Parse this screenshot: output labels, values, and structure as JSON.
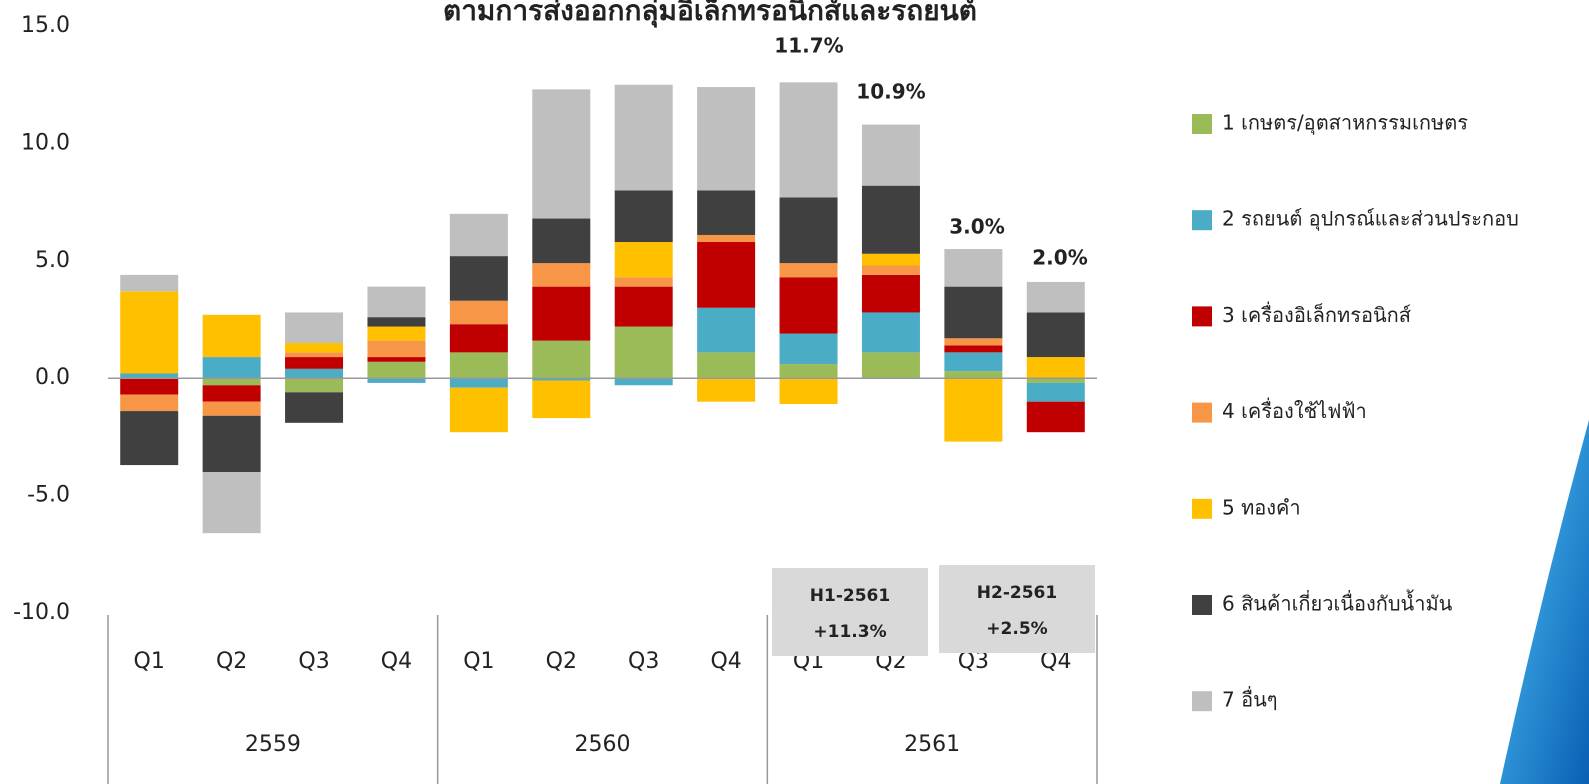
{
  "chart_data": {
    "type": "stacked_bar",
    "title": "ตามการส่งออกกลุ่มอิเล็กทรอนิกส์และรถยนต์",
    "categories": [
      "Q1",
      "Q2",
      "Q3",
      "Q4",
      "Q1",
      "Q2",
      "Q3",
      "Q4",
      "Q1",
      "Q2",
      "Q3",
      "Q4"
    ],
    "groups": [
      "2559",
      "2560",
      "2561"
    ],
    "series": [
      {
        "name": "1 เกษตร/อุตสาหกรรมเกษตร",
        "color": "#9BBB59",
        "values": [
          0,
          -0.3,
          -0.6,
          0.7,
          1.1,
          1.6,
          2.2,
          1.1,
          0.6,
          1.1,
          0.3,
          -0.2
        ]
      },
      {
        "name": "2 รถยนต์ อุปกรณ์และส่วนประกอบ",
        "color": "#4BACC6",
        "values": [
          0.2,
          0.9,
          0.4,
          -0.2,
          -0.4,
          -0.1,
          -0.3,
          1.9,
          1.3,
          1.7,
          0.8,
          -0.8
        ]
      },
      {
        "name": "3 เครื่องอิเล็กทรอนิกส์",
        "color": "#C00000",
        "values": [
          -0.7,
          -0.7,
          0.5,
          0.2,
          1.2,
          2.3,
          1.7,
          2.8,
          2.4,
          1.6,
          0.3,
          -1.3
        ]
      },
      {
        "name": "4 เครื่องใช้ไฟฟ้า",
        "color": "#F79646",
        "values": [
          -0.7,
          -0.6,
          0.2,
          0.7,
          1.0,
          1.0,
          0.4,
          0.3,
          0.6,
          0.4,
          0.3,
          0
        ]
      },
      {
        "name": "5 ทองคำ",
        "color": "#FFC000",
        "values": [
          3.5,
          1.8,
          0.4,
          0.6,
          -1.9,
          -1.6,
          1.5,
          -1.0,
          -1.1,
          0.5,
          -2.7,
          0.9
        ]
      },
      {
        "name": "6 สินค้าเกี่ยวเนื่องกับน้ำมัน",
        "color": "#404040",
        "values": [
          -2.3,
          -2.4,
          -1.3,
          0.4,
          1.9,
          1.9,
          2.2,
          1.9,
          2.8,
          2.9,
          2.2,
          1.9
        ]
      },
      {
        "name": "7 อื่นๆ",
        "color": "#BFBFBF",
        "values": [
          0.7,
          -2.6,
          1.3,
          1.3,
          1.8,
          5.5,
          4.5,
          4.4,
          4.9,
          2.6,
          1.6,
          1.3
        ]
      }
    ],
    "annotations": [
      "11.7%",
      "10.9%",
      "3.0%",
      "2.0%"
    ],
    "period_boxes": [
      {
        "label": "H1-2561",
        "value_label": "+11.3%"
      },
      {
        "label": "H2-2561",
        "value_label": "+2.5%"
      }
    ],
    "ylim": [
      -10,
      15
    ],
    "yticks": [
      {
        "value": -10,
        "label": "-10.0"
      },
      {
        "value": -5,
        "label": "-5.0"
      },
      {
        "value": 0,
        "label": "0.0"
      },
      {
        "value": 5,
        "label": "5.0"
      },
      {
        "value": 10,
        "label": "10.0"
      },
      {
        "value": 15,
        "label": "15.0"
      }
    ],
    "legend": "right"
  }
}
